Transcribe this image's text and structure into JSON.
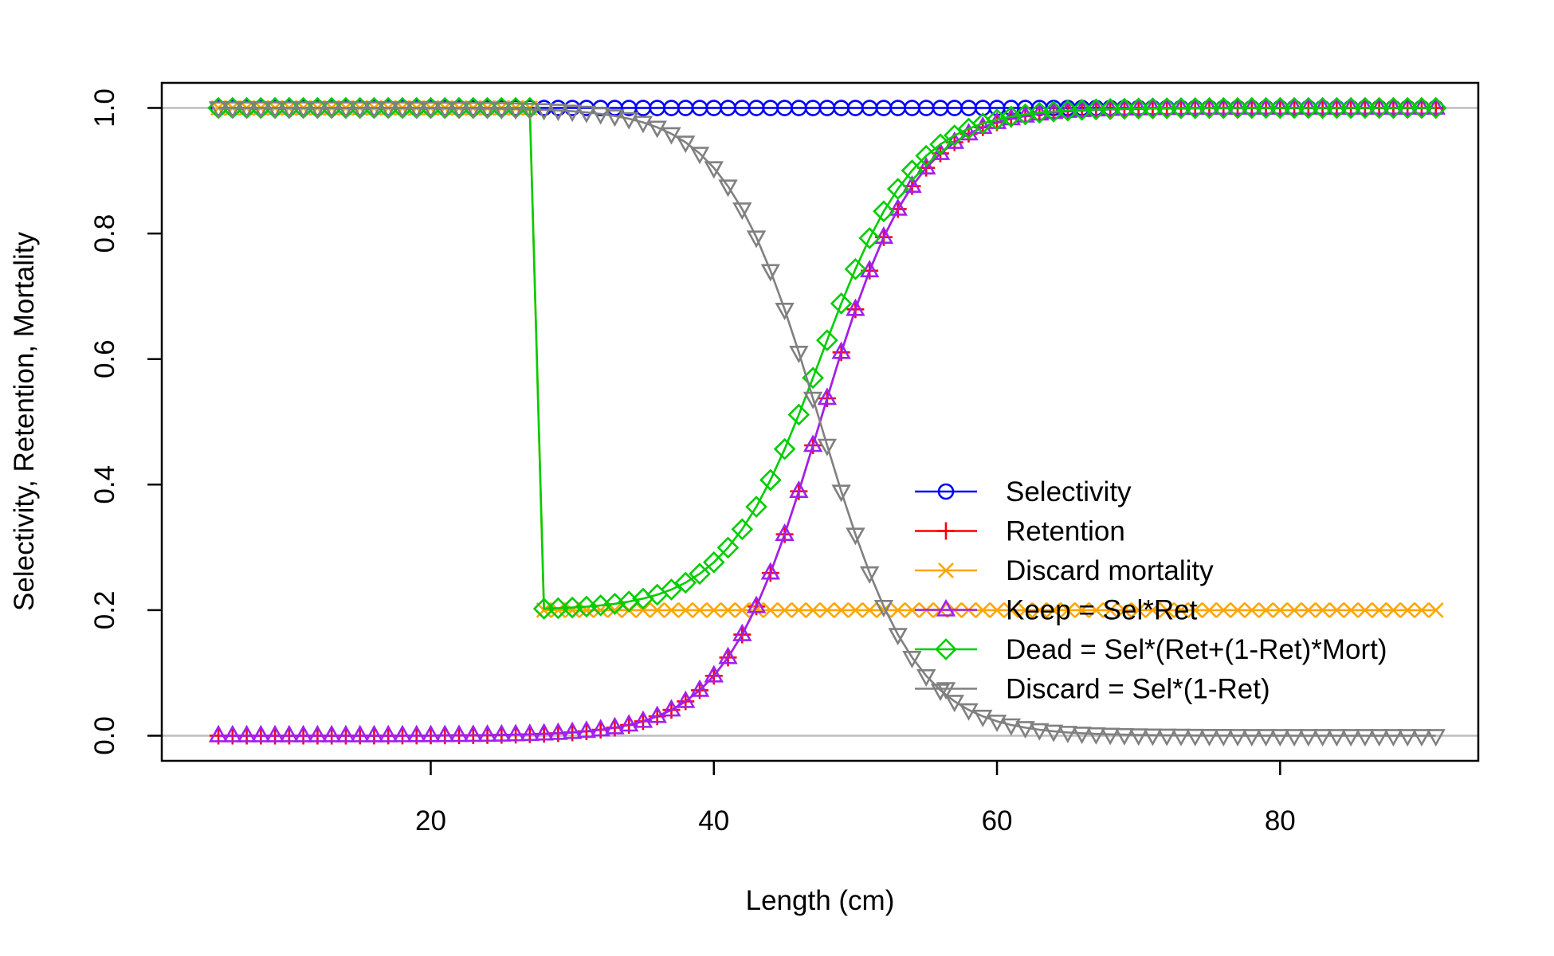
{
  "chart_data": {
    "type": "line",
    "xlabel": "Length (cm)",
    "ylabel": "Selectivity, Retention, Mortality",
    "xlim": [
      1,
      94
    ],
    "ylim": [
      -0.04,
      1.04
    ],
    "x_ticks": [
      20,
      40,
      60,
      80
    ],
    "y_ticks": [
      0.0,
      0.2,
      0.4,
      0.6,
      0.8,
      1.0
    ],
    "x_tick_labels": [
      "20",
      "40",
      "60",
      "80"
    ],
    "y_tick_labels": [
      "0.0",
      "0.2",
      "0.4",
      "0.6",
      "0.8",
      "1.0"
    ],
    "reference_lines_y": [
      0,
      1
    ],
    "reference_line_color": "#bebebe",
    "x_range": {
      "start": 5,
      "end": 91,
      "step": 1
    },
    "model": {
      "retention": {
        "L50": 47.5,
        "slope": 0.3
      },
      "discard_mortality": {
        "value": 0.2,
        "value_below_min_size": 1.0,
        "min_size_x": 28
      }
    },
    "legend_position": "center-right",
    "series": [
      {
        "name": "Selectivity",
        "color": "#0000ff",
        "marker": "circle"
      },
      {
        "name": "Retention",
        "color": "#ff0000",
        "marker": "plus"
      },
      {
        "name": "Discard mortality",
        "color": "#ffa500",
        "marker": "x"
      },
      {
        "name": "Keep = Sel*Ret",
        "color": "#a020f0",
        "marker": "triangle-up"
      },
      {
        "name": "Dead = Sel*(Ret+(1-Ret)*Mort)",
        "color": "#00cd00",
        "marker": "diamond"
      },
      {
        "name": "Discard = Sel*(1-Ret)",
        "color": "#808080",
        "marker": "triangle-down"
      }
    ]
  }
}
